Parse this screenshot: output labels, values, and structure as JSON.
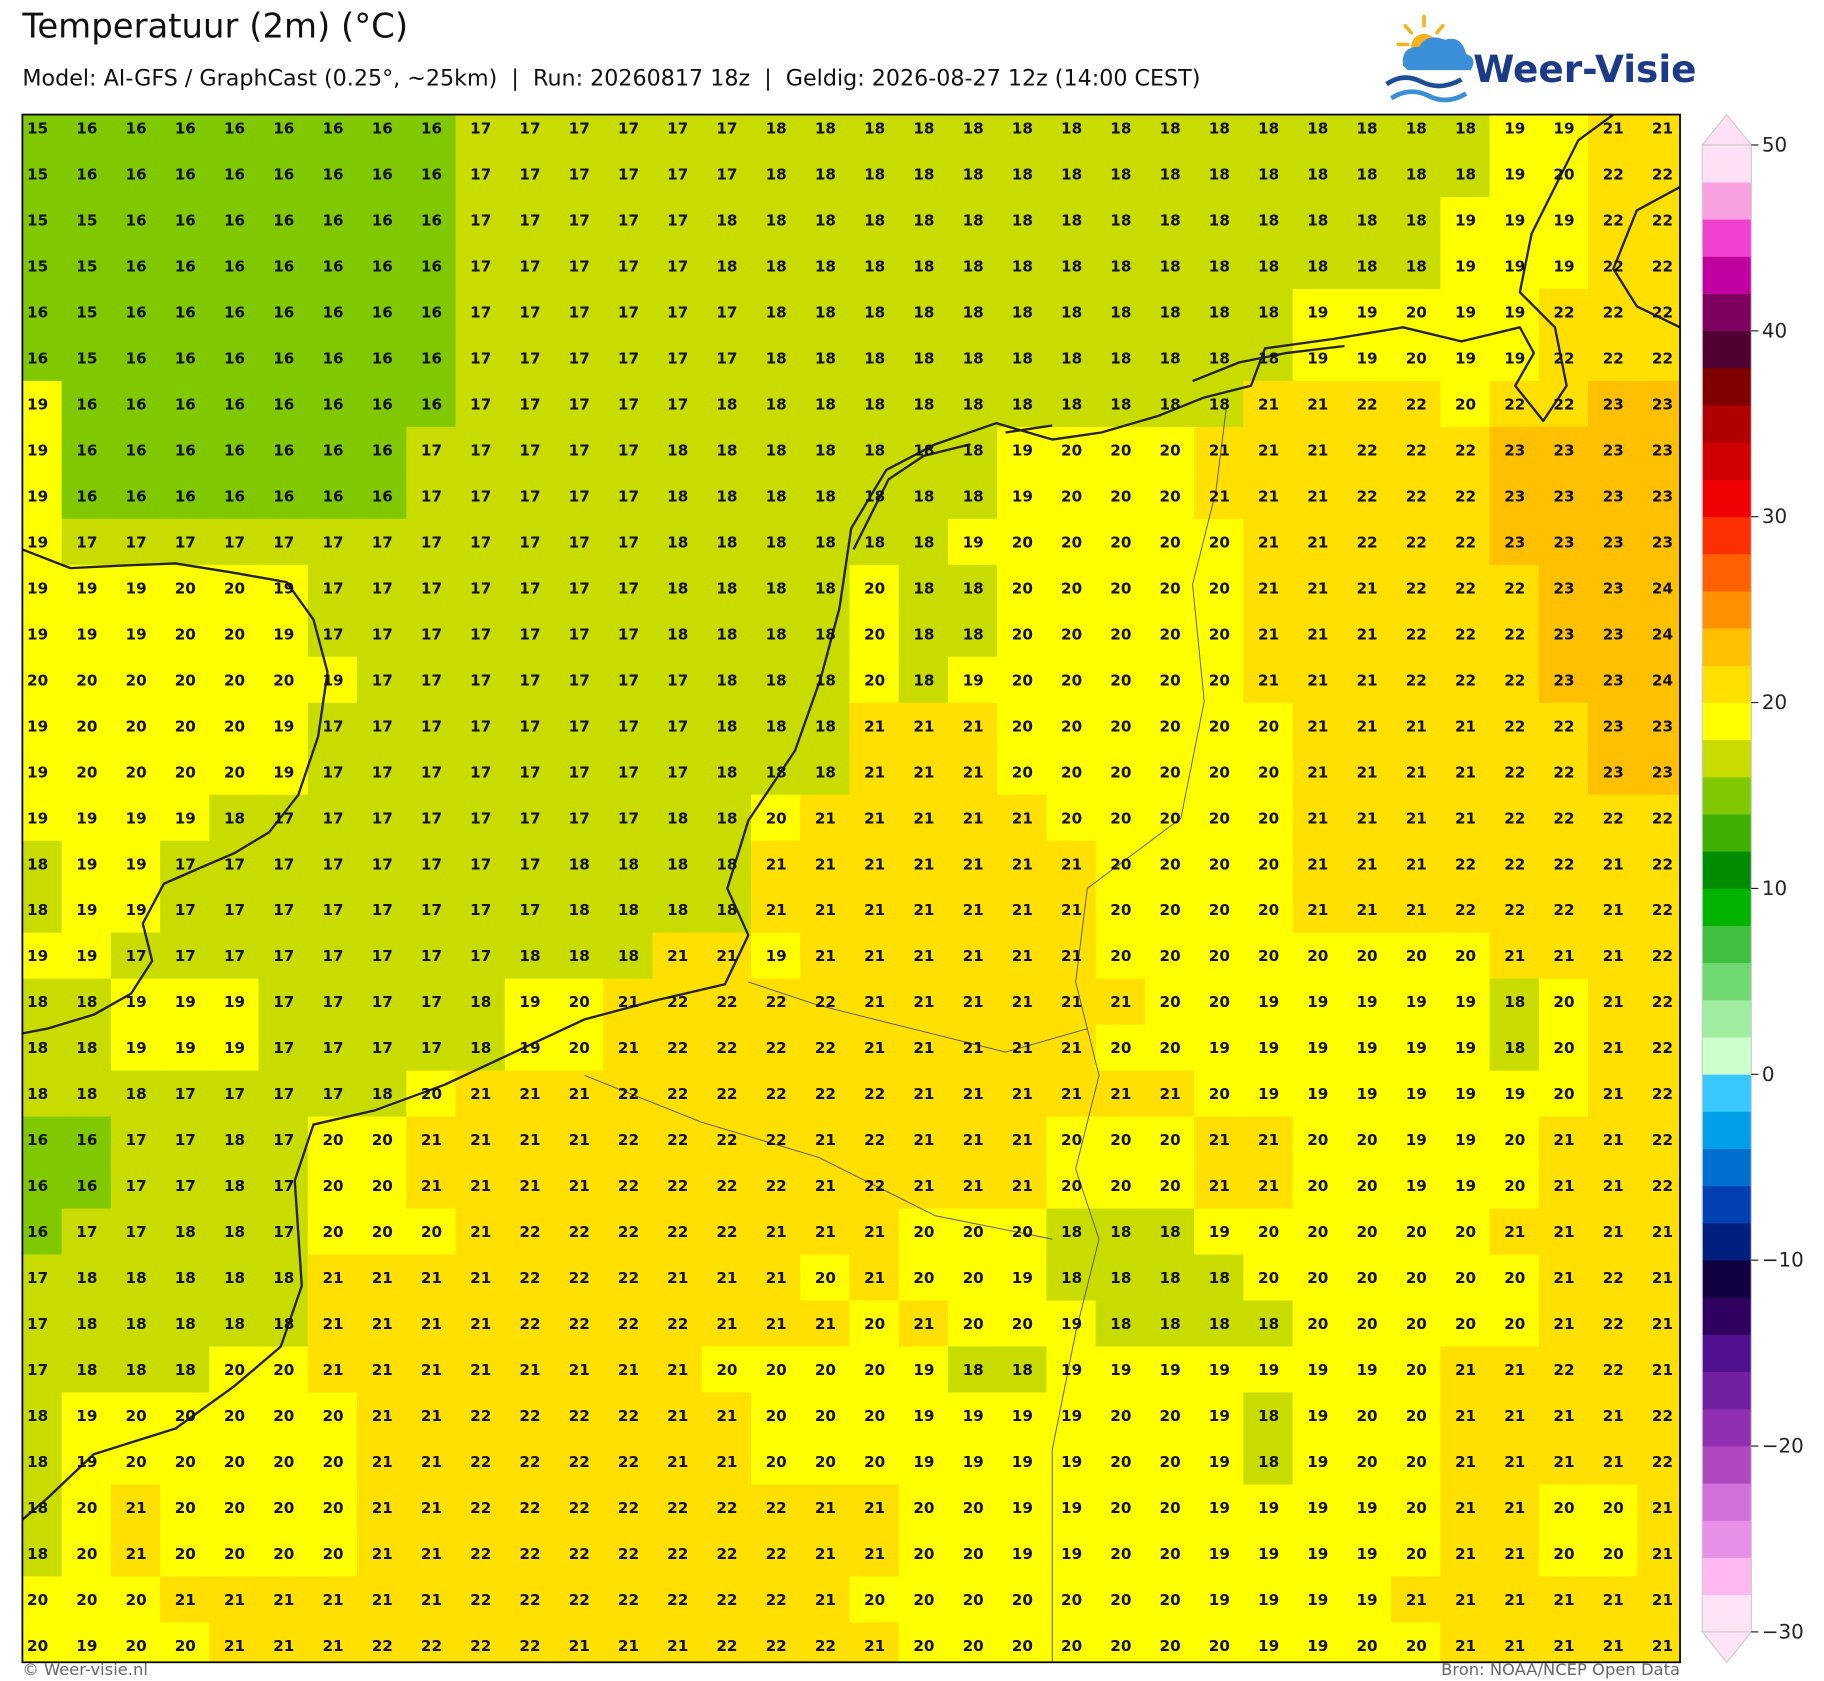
{
  "header": {
    "title": "Temperatuur (2m) (°C)",
    "subtitle": "Model: AI-GFS / GraphCast (0.25°, ~25km)  |  Run: 20260817 18z  |  Geldig: 2026-08-27 12z (14:00 CEST)"
  },
  "logo": "Weer-Visie",
  "grid": {
    "rows": [
      [
        15,
        16,
        16,
        16,
        16,
        16,
        16,
        16,
        16,
        17,
        17,
        17,
        17,
        17,
        17,
        18,
        18,
        18,
        18,
        18,
        18,
        18,
        18,
        18,
        18,
        18,
        18,
        18,
        18,
        18,
        19,
        19,
        21,
        21
      ],
      [
        15,
        16,
        16,
        16,
        16,
        16,
        16,
        16,
        16,
        17,
        17,
        17,
        17,
        17,
        17,
        18,
        18,
        18,
        18,
        18,
        18,
        18,
        18,
        18,
        18,
        18,
        18,
        18,
        18,
        18,
        19,
        20,
        22,
        22
      ],
      [
        15,
        15,
        16,
        16,
        16,
        16,
        16,
        16,
        16,
        17,
        17,
        17,
        17,
        17,
        18,
        18,
        18,
        18,
        18,
        18,
        18,
        18,
        18,
        18,
        18,
        18,
        18,
        18,
        18,
        19,
        19,
        19,
        22,
        22
      ],
      [
        15,
        15,
        16,
        16,
        16,
        16,
        16,
        16,
        16,
        17,
        17,
        17,
        17,
        17,
        18,
        18,
        18,
        18,
        18,
        18,
        18,
        18,
        18,
        18,
        18,
        18,
        18,
        18,
        18,
        19,
        19,
        19,
        22,
        22
      ],
      [
        16,
        15,
        16,
        16,
        16,
        16,
        16,
        16,
        16,
        17,
        17,
        17,
        17,
        17,
        17,
        18,
        18,
        18,
        18,
        18,
        18,
        18,
        18,
        18,
        18,
        18,
        19,
        19,
        20,
        19,
        19,
        22,
        22,
        22
      ],
      [
        16,
        15,
        16,
        16,
        16,
        16,
        16,
        16,
        16,
        17,
        17,
        17,
        17,
        17,
        17,
        18,
        18,
        18,
        18,
        18,
        18,
        18,
        18,
        18,
        18,
        18,
        19,
        19,
        20,
        19,
        19,
        22,
        22,
        22
      ],
      [
        19,
        16,
        16,
        16,
        16,
        16,
        16,
        16,
        16,
        17,
        17,
        17,
        17,
        17,
        18,
        18,
        18,
        18,
        18,
        18,
        18,
        18,
        18,
        18,
        18,
        21,
        21,
        22,
        22,
        20,
        22,
        22,
        23,
        23
      ],
      [
        19,
        16,
        16,
        16,
        16,
        16,
        16,
        16,
        17,
        17,
        17,
        17,
        17,
        18,
        18,
        18,
        18,
        18,
        18,
        18,
        19,
        20,
        20,
        20,
        21,
        21,
        21,
        22,
        22,
        22,
        23,
        23,
        23,
        23
      ],
      [
        19,
        16,
        16,
        16,
        16,
        16,
        16,
        16,
        17,
        17,
        17,
        17,
        17,
        18,
        18,
        18,
        18,
        18,
        18,
        18,
        19,
        20,
        20,
        20,
        21,
        21,
        21,
        22,
        22,
        22,
        23,
        23,
        23,
        23
      ],
      [
        19,
        17,
        17,
        17,
        17,
        17,
        17,
        17,
        17,
        17,
        17,
        17,
        17,
        18,
        18,
        18,
        18,
        18,
        18,
        19,
        20,
        20,
        20,
        20,
        20,
        21,
        21,
        22,
        22,
        22,
        23,
        23,
        23,
        23
      ],
      [
        19,
        19,
        19,
        20,
        20,
        19,
        17,
        17,
        17,
        17,
        17,
        17,
        17,
        18,
        18,
        18,
        18,
        20,
        18,
        18,
        20,
        20,
        20,
        20,
        20,
        21,
        21,
        21,
        22,
        22,
        22,
        23,
        23,
        24
      ],
      [
        19,
        19,
        19,
        20,
        20,
        19,
        17,
        17,
        17,
        17,
        17,
        17,
        17,
        18,
        18,
        18,
        18,
        20,
        18,
        18,
        20,
        20,
        20,
        20,
        20,
        21,
        21,
        21,
        22,
        22,
        22,
        23,
        23,
        24
      ],
      [
        20,
        20,
        20,
        20,
        20,
        20,
        19,
        17,
        17,
        17,
        17,
        17,
        17,
        17,
        18,
        18,
        18,
        20,
        18,
        19,
        20,
        20,
        20,
        20,
        20,
        21,
        21,
        21,
        22,
        22,
        22,
        23,
        23,
        24
      ],
      [
        19,
        20,
        20,
        20,
        20,
        19,
        17,
        17,
        17,
        17,
        17,
        17,
        17,
        17,
        18,
        18,
        18,
        21,
        21,
        21,
        20,
        20,
        20,
        20,
        20,
        20,
        21,
        21,
        21,
        21,
        22,
        22,
        23,
        23
      ],
      [
        19,
        20,
        20,
        20,
        20,
        19,
        17,
        17,
        17,
        17,
        17,
        17,
        17,
        17,
        18,
        18,
        18,
        21,
        21,
        21,
        20,
        20,
        20,
        20,
        20,
        20,
        21,
        21,
        21,
        21,
        22,
        22,
        23,
        23
      ],
      [
        19,
        19,
        19,
        19,
        18,
        17,
        17,
        17,
        17,
        17,
        17,
        17,
        17,
        18,
        18,
        20,
        21,
        21,
        21,
        21,
        21,
        20,
        20,
        20,
        20,
        20,
        21,
        21,
        21,
        21,
        22,
        22,
        22,
        22
      ],
      [
        18,
        19,
        19,
        17,
        17,
        17,
        17,
        17,
        17,
        17,
        17,
        18,
        18,
        18,
        18,
        21,
        21,
        21,
        21,
        21,
        21,
        21,
        20,
        20,
        20,
        20,
        21,
        21,
        21,
        22,
        22,
        22,
        21,
        22
      ],
      [
        18,
        19,
        19,
        17,
        17,
        17,
        17,
        17,
        17,
        17,
        17,
        18,
        18,
        18,
        18,
        21,
        21,
        21,
        21,
        21,
        21,
        21,
        20,
        20,
        20,
        20,
        21,
        21,
        21,
        22,
        22,
        22,
        21,
        22
      ],
      [
        19,
        19,
        17,
        17,
        17,
        17,
        17,
        17,
        17,
        17,
        18,
        18,
        18,
        21,
        21,
        19,
        21,
        21,
        21,
        21,
        21,
        21,
        20,
        20,
        20,
        20,
        20,
        20,
        20,
        20,
        21,
        21,
        21,
        22
      ],
      [
        18,
        18,
        19,
        19,
        19,
        17,
        17,
        17,
        17,
        18,
        19,
        20,
        21,
        22,
        22,
        22,
        22,
        21,
        21,
        21,
        21,
        21,
        21,
        20,
        20,
        19,
        19,
        19,
        19,
        19,
        18,
        20,
        21,
        22
      ],
      [
        18,
        18,
        19,
        19,
        19,
        17,
        17,
        17,
        17,
        18,
        19,
        20,
        21,
        22,
        22,
        22,
        22,
        21,
        21,
        21,
        21,
        21,
        20,
        20,
        19,
        19,
        19,
        19,
        19,
        19,
        18,
        20,
        21,
        22
      ],
      [
        18,
        18,
        18,
        17,
        17,
        17,
        17,
        18,
        20,
        21,
        21,
        21,
        22,
        22,
        22,
        22,
        22,
        22,
        21,
        21,
        21,
        21,
        21,
        21,
        20,
        19,
        19,
        19,
        19,
        19,
        19,
        20,
        21,
        22
      ],
      [
        16,
        16,
        17,
        17,
        18,
        17,
        20,
        20,
        21,
        21,
        21,
        21,
        22,
        22,
        22,
        22,
        21,
        22,
        21,
        21,
        21,
        20,
        20,
        20,
        21,
        21,
        20,
        20,
        19,
        19,
        20,
        21,
        21,
        22
      ],
      [
        16,
        16,
        17,
        17,
        18,
        17,
        20,
        20,
        21,
        21,
        21,
        21,
        22,
        22,
        22,
        22,
        21,
        22,
        21,
        21,
        21,
        20,
        20,
        20,
        21,
        21,
        20,
        20,
        19,
        19,
        20,
        21,
        21,
        22
      ],
      [
        16,
        17,
        17,
        18,
        18,
        17,
        20,
        20,
        20,
        21,
        22,
        22,
        22,
        22,
        22,
        21,
        21,
        21,
        20,
        20,
        20,
        18,
        18,
        18,
        19,
        20,
        20,
        20,
        20,
        20,
        21,
        21,
        21,
        21
      ],
      [
        17,
        18,
        18,
        18,
        18,
        18,
        21,
        21,
        21,
        21,
        22,
        22,
        22,
        21,
        21,
        21,
        20,
        21,
        20,
        20,
        19,
        18,
        18,
        18,
        18,
        20,
        20,
        20,
        20,
        20,
        20,
        21,
        22,
        21
      ],
      [
        17,
        18,
        18,
        18,
        18,
        18,
        21,
        21,
        21,
        21,
        22,
        22,
        22,
        22,
        21,
        21,
        21,
        20,
        21,
        20,
        20,
        19,
        18,
        18,
        18,
        18,
        20,
        20,
        20,
        20,
        20,
        21,
        22,
        21
      ],
      [
        17,
        18,
        18,
        18,
        20,
        20,
        21,
        21,
        21,
        21,
        21,
        21,
        21,
        21,
        20,
        20,
        20,
        20,
        19,
        18,
        18,
        19,
        19,
        19,
        19,
        19,
        19,
        19,
        20,
        21,
        21,
        22,
        22,
        21
      ],
      [
        18,
        19,
        20,
        20,
        20,
        20,
        20,
        21,
        21,
        22,
        22,
        22,
        22,
        21,
        21,
        20,
        20,
        20,
        19,
        19,
        19,
        19,
        20,
        20,
        19,
        18,
        19,
        20,
        20,
        21,
        21,
        21,
        21,
        22
      ],
      [
        18,
        19,
        20,
        20,
        20,
        20,
        20,
        21,
        21,
        22,
        22,
        22,
        22,
        21,
        21,
        20,
        20,
        20,
        19,
        19,
        19,
        19,
        20,
        20,
        19,
        18,
        19,
        20,
        20,
        21,
        21,
        21,
        21,
        22
      ],
      [
        18,
        20,
        21,
        20,
        20,
        20,
        20,
        21,
        21,
        22,
        22,
        22,
        22,
        22,
        22,
        22,
        21,
        21,
        20,
        20,
        19,
        19,
        20,
        20,
        19,
        19,
        19,
        19,
        20,
        21,
        21,
        20,
        20,
        21
      ],
      [
        18,
        20,
        21,
        20,
        20,
        20,
        20,
        21,
        21,
        22,
        22,
        22,
        22,
        22,
        22,
        22,
        21,
        21,
        20,
        20,
        19,
        19,
        20,
        20,
        19,
        19,
        19,
        19,
        20,
        21,
        21,
        20,
        20,
        21
      ],
      [
        20,
        20,
        20,
        21,
        21,
        21,
        21,
        21,
        21,
        22,
        22,
        22,
        22,
        22,
        22,
        22,
        21,
        20,
        20,
        20,
        20,
        20,
        20,
        20,
        19,
        19,
        19,
        19,
        21,
        21,
        21,
        21,
        21,
        21
      ],
      [
        20,
        19,
        20,
        20,
        21,
        21,
        21,
        22,
        22,
        22,
        22,
        21,
        21,
        21,
        22,
        22,
        22,
        21,
        20,
        20,
        20,
        20,
        20,
        20,
        20,
        19,
        19,
        20,
        20,
        21,
        21,
        21,
        21,
        21
      ]
    ]
  },
  "colorbar": {
    "range": [
      -30,
      50
    ],
    "ticks": [
      {
        "value": -30,
        "label": "−30"
      },
      {
        "value": -20,
        "label": "−20"
      },
      {
        "value": -10,
        "label": "−10"
      },
      0,
      10,
      20,
      30,
      40,
      50
    ],
    "colors": [
      "#ffe4f8",
      "#ffb8f0",
      "#e890e8",
      "#d070d8",
      "#b048c0",
      "#9030b0",
      "#7020a0",
      "#501090",
      "#300060",
      "#100040",
      "#002080",
      "#0040b0",
      "#0070d0",
      "#00a0e8",
      "#38c8ff",
      "#ccffcc",
      "#a0eca0",
      "#70d870",
      "#40c040",
      "#00b400",
      "#008c00",
      "#40b000",
      "#80c800",
      "#c8dc00",
      "#ffff00",
      "#ffe000",
      "#ffc000",
      "#ff9000",
      "#ff6000",
      "#ff3000",
      "#f00000",
      "#d00000",
      "#b00000",
      "#800000",
      "#500030",
      "#800060",
      "#c000a0",
      "#f040d0",
      "#f8a0e0",
      "#ffe0f4"
    ]
  },
  "footer": {
    "credit": "© Weer-visie.nl",
    "source": "Bron: NOAA/NCEP Open Data"
  }
}
